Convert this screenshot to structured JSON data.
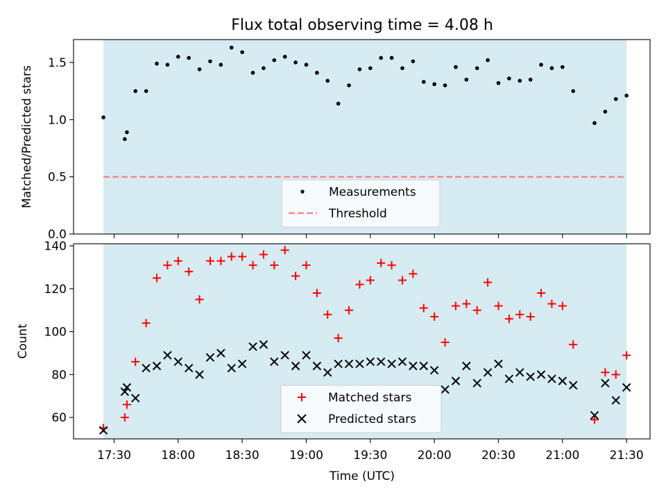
{
  "chart_data": [
    {
      "type": "scatter",
      "title": "Flux total observing time = 4.08 h",
      "ylabel": "Matched/Predicted stars",
      "ylim": [
        0,
        1.7
      ],
      "yticks": [
        0.0,
        0.5,
        1.0,
        1.5
      ],
      "ytick_labels": [
        "0.0",
        "0.5",
        "1.0",
        "1.5"
      ],
      "observing_window": [
        "17:25",
        "21:30"
      ],
      "threshold": 0.5,
      "legend_labels": {
        "measurements": "Measurements",
        "threshold": "Threshold"
      },
      "series": [
        {
          "name": "Measurements",
          "x": [
            "17:25",
            "17:35",
            "17:36",
            "17:40",
            "17:45",
            "17:50",
            "17:55",
            "18:00",
            "18:05",
            "18:10",
            "18:15",
            "18:20",
            "18:25",
            "18:30",
            "18:35",
            "18:40",
            "18:45",
            "18:50",
            "18:55",
            "19:00",
            "19:05",
            "19:10",
            "19:15",
            "19:20",
            "19:25",
            "19:30",
            "19:35",
            "19:40",
            "19:45",
            "19:50",
            "19:55",
            "20:00",
            "20:05",
            "20:10",
            "20:15",
            "20:20",
            "20:25",
            "20:30",
            "20:35",
            "20:40",
            "20:45",
            "20:50",
            "20:55",
            "21:00",
            "21:05",
            "21:15",
            "21:20",
            "21:25",
            "21:30"
          ],
          "y": [
            1.02,
            0.83,
            0.89,
            1.25,
            1.25,
            1.49,
            1.48,
            1.55,
            1.54,
            1.44,
            1.51,
            1.48,
            1.63,
            1.59,
            1.41,
            1.45,
            1.52,
            1.55,
            1.5,
            1.48,
            1.41,
            1.34,
            1.14,
            1.3,
            1.44,
            1.45,
            1.54,
            1.54,
            1.45,
            1.51,
            1.33,
            1.31,
            1.3,
            1.46,
            1.35,
            1.45,
            1.52,
            1.32,
            1.36,
            1.34,
            1.35,
            1.48,
            1.45,
            1.46,
            1.25,
            0.97,
            1.07,
            1.18,
            1.21
          ]
        }
      ]
    },
    {
      "type": "scatter",
      "xlabel": "Time (UTC)",
      "ylabel": "Count",
      "ylim": [
        50,
        141
      ],
      "yticks": [
        60,
        80,
        100,
        120,
        140
      ],
      "ytick_labels": [
        "60",
        "80",
        "100",
        "120",
        "140"
      ],
      "xlim": [
        "17:11",
        "21:41"
      ],
      "xticks": [
        "17:30",
        "18:00",
        "18:30",
        "19:00",
        "19:30",
        "20:00",
        "20:30",
        "21:00",
        "21:30"
      ],
      "observing_window": [
        "17:25",
        "21:30"
      ],
      "series": [
        {
          "name": "Matched stars",
          "color": "#ff0000",
          "x": [
            "17:25",
            "17:35",
            "17:36",
            "17:40",
            "17:45",
            "17:50",
            "17:55",
            "18:00",
            "18:05",
            "18:10",
            "18:15",
            "18:20",
            "18:25",
            "18:30",
            "18:35",
            "18:40",
            "18:45",
            "18:50",
            "18:55",
            "19:00",
            "19:05",
            "19:10",
            "19:15",
            "19:20",
            "19:25",
            "19:30",
            "19:35",
            "19:40",
            "19:45",
            "19:50",
            "19:55",
            "20:00",
            "20:05",
            "20:10",
            "20:15",
            "20:20",
            "20:25",
            "20:30",
            "20:35",
            "20:40",
            "20:45",
            "20:50",
            "20:55",
            "21:00",
            "21:05",
            "21:15",
            "21:20",
            "21:25",
            "21:30"
          ],
          "y": [
            55,
            60,
            66,
            86,
            104,
            125,
            131,
            133,
            128,
            115,
            133,
            133,
            135,
            135,
            131,
            136,
            131,
            138,
            126,
            131,
            118,
            108,
            97,
            110,
            122,
            124,
            132,
            131,
            124,
            127,
            111,
            107,
            95,
            112,
            113,
            110,
            123,
            112,
            106,
            108,
            107,
            118,
            113,
            112,
            94,
            59,
            81,
            80,
            89
          ]
        },
        {
          "name": "Predicted stars",
          "color": "#000000",
          "x": [
            "17:25",
            "17:35",
            "17:36",
            "17:40",
            "17:45",
            "17:50",
            "17:55",
            "18:00",
            "18:05",
            "18:10",
            "18:15",
            "18:20",
            "18:25",
            "18:30",
            "18:35",
            "18:40",
            "18:45",
            "18:50",
            "18:55",
            "19:00",
            "19:05",
            "19:10",
            "19:15",
            "19:20",
            "19:25",
            "19:30",
            "19:35",
            "19:40",
            "19:45",
            "19:50",
            "19:55",
            "20:00",
            "20:05",
            "20:10",
            "20:15",
            "20:20",
            "20:25",
            "20:30",
            "20:35",
            "20:40",
            "20:45",
            "20:50",
            "20:55",
            "21:00",
            "21:05",
            "21:15",
            "21:20",
            "21:25",
            "21:30"
          ],
          "y": [
            54,
            72,
            74,
            69,
            83,
            84,
            89,
            86,
            83,
            80,
            88,
            90,
            83,
            85,
            93,
            94,
            86,
            89,
            84,
            89,
            84,
            81,
            85,
            85,
            85,
            86,
            86,
            85,
            86,
            84,
            84,
            82,
            73,
            77,
            84,
            76,
            81,
            85,
            78,
            81,
            79,
            80,
            78,
            77,
            75,
            61,
            76,
            68,
            74
          ]
        }
      ]
    }
  ]
}
